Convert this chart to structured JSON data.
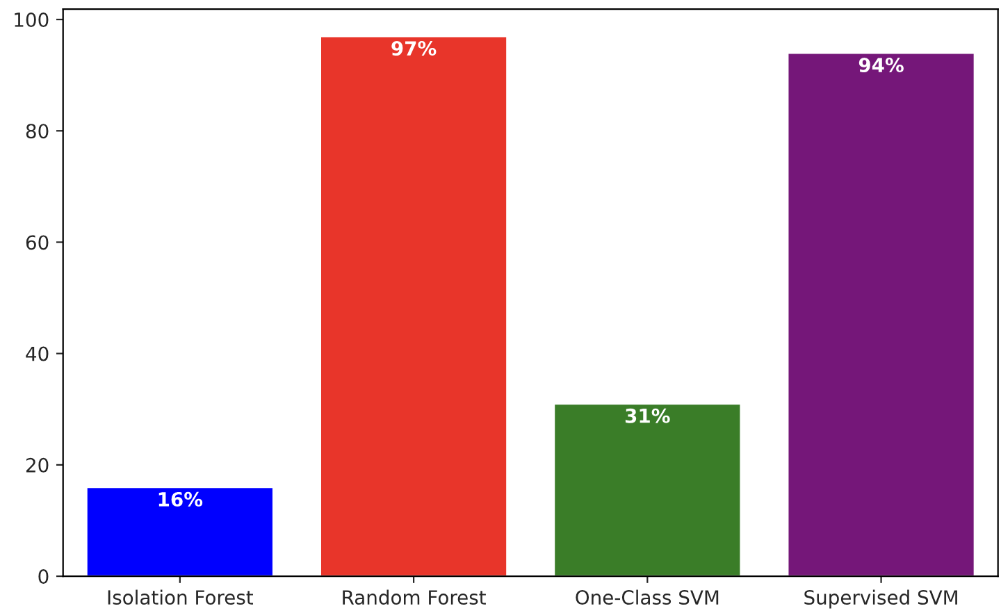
{
  "chart_data": {
    "type": "bar",
    "categories": [
      "Isolation Forest",
      "Random Forest",
      "One-Class SVM",
      "Supervised SVM"
    ],
    "values": [
      16,
      97,
      31,
      94
    ],
    "colors": [
      "#0000ff",
      "#e8352a",
      "#3a7d28",
      "#751779"
    ],
    "value_labels": [
      "16%",
      "97%",
      "31%",
      "94%"
    ],
    "ylim": [
      0,
      101.85
    ],
    "yticks": [
      0,
      20,
      40,
      60,
      80,
      100
    ],
    "grid": false,
    "legend": false
  }
}
